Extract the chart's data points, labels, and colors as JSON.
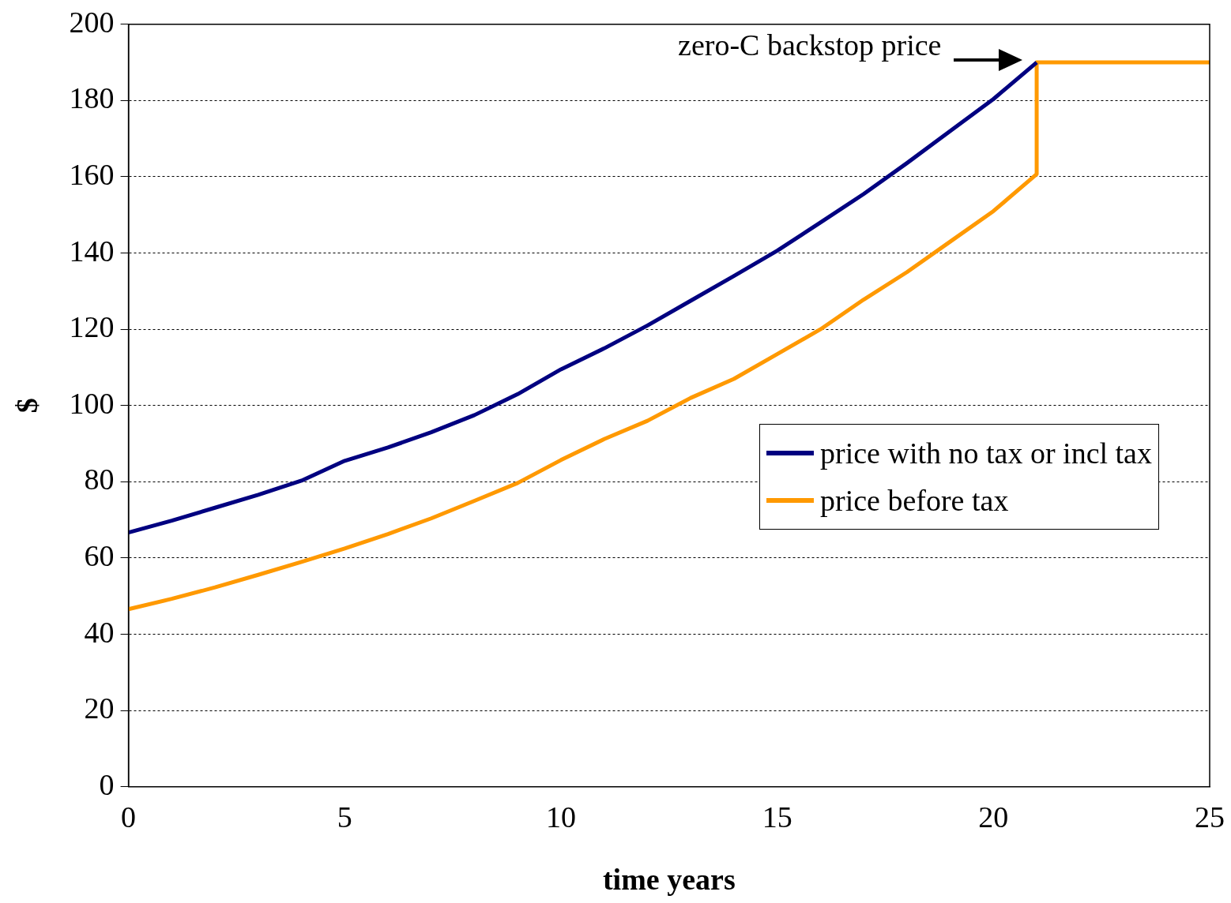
{
  "chart_data": {
    "type": "line",
    "xlabel": "time years",
    "ylabel": "$",
    "xlim": [
      0,
      25
    ],
    "xticks": [
      0,
      5,
      10,
      15,
      20,
      25
    ],
    "ylim": [
      0,
      200
    ],
    "yticks": [
      0,
      20,
      40,
      60,
      80,
      100,
      120,
      140,
      160,
      180,
      200
    ],
    "grid": "y",
    "legend": "right",
    "marker": "none",
    "line_style": "solid",
    "annotations": [
      "zero-C backstop price"
    ],
    "series": [
      {
        "name": "price with no tax or incl tax",
        "color": "#000080",
        "x": [
          0,
          1,
          2,
          3,
          4,
          5,
          6,
          7,
          8,
          9,
          10,
          11,
          12,
          13,
          14,
          15,
          16,
          17,
          18,
          19,
          20,
          21
        ],
        "values": [
          66.7,
          69.8,
          73.2,
          76.6,
          80.3,
          85.5,
          89,
          93,
          97.5,
          103,
          109.5,
          115,
          121,
          127.5,
          134,
          140.6,
          148,
          155.5,
          163.6,
          172,
          180.4,
          190
        ]
      },
      {
        "name": "price before tax",
        "color": "#ff9900",
        "x": [
          0,
          1,
          2,
          3,
          4,
          5,
          6,
          7,
          8,
          9,
          10,
          11,
          12,
          13,
          14,
          15,
          16,
          17,
          18,
          19,
          20,
          21,
          21,
          25
        ],
        "values": [
          46.6,
          49.3,
          52.3,
          55.6,
          59,
          62.5,
          66.3,
          70.4,
          75,
          79.7,
          85.7,
          91.2,
          96,
          102,
          107,
          113.5,
          120,
          127.8,
          135,
          143,
          151,
          160.7,
          190,
          190
        ]
      }
    ]
  }
}
